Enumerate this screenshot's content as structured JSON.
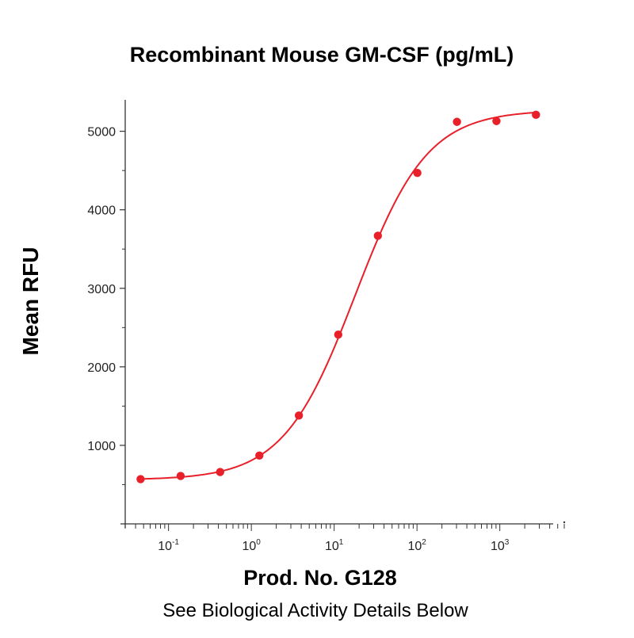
{
  "page": {
    "title": "Recombinant Mouse GM-CSF (pg/mL)",
    "caption": "See Biological Activity Details Below"
  },
  "colors": {
    "series": "#e8202a",
    "axis": "#333333"
  },
  "chart_data": {
    "type": "scatter",
    "title": "Recombinant Mouse GM-CSF (pg/mL)",
    "xlabel": "Prod. No. G128",
    "ylabel": "Mean RFU",
    "x_scale": "log",
    "xlim": [
      0.03,
      6000
    ],
    "ylim": [
      0,
      5400
    ],
    "yticks": [
      1000,
      2000,
      3000,
      4000,
      5000
    ],
    "xticks": [
      {
        "value": 0.1,
        "base": "10",
        "exp": "-1"
      },
      {
        "value": 1,
        "base": "10",
        "exp": "0"
      },
      {
        "value": 10,
        "base": "10",
        "exp": "1"
      },
      {
        "value": 100,
        "base": "10",
        "exp": "2"
      },
      {
        "value": 1000,
        "base": "10",
        "exp": "3"
      }
    ],
    "grid": false,
    "legend": "none",
    "series": [
      {
        "x": [
          0.046,
          0.14,
          0.42,
          1.25,
          3.75,
          11.2,
          33.7,
          101,
          304,
          911,
          2733
        ],
        "y": [
          570,
          610,
          660,
          870,
          1380,
          2410,
          3670,
          4470,
          5120,
          5130,
          5210
        ],
        "fit": "4PL",
        "fit_params": {
          "bottom": 560,
          "top": 5270,
          "ec50": 18,
          "hill": 1.0
        }
      }
    ]
  }
}
